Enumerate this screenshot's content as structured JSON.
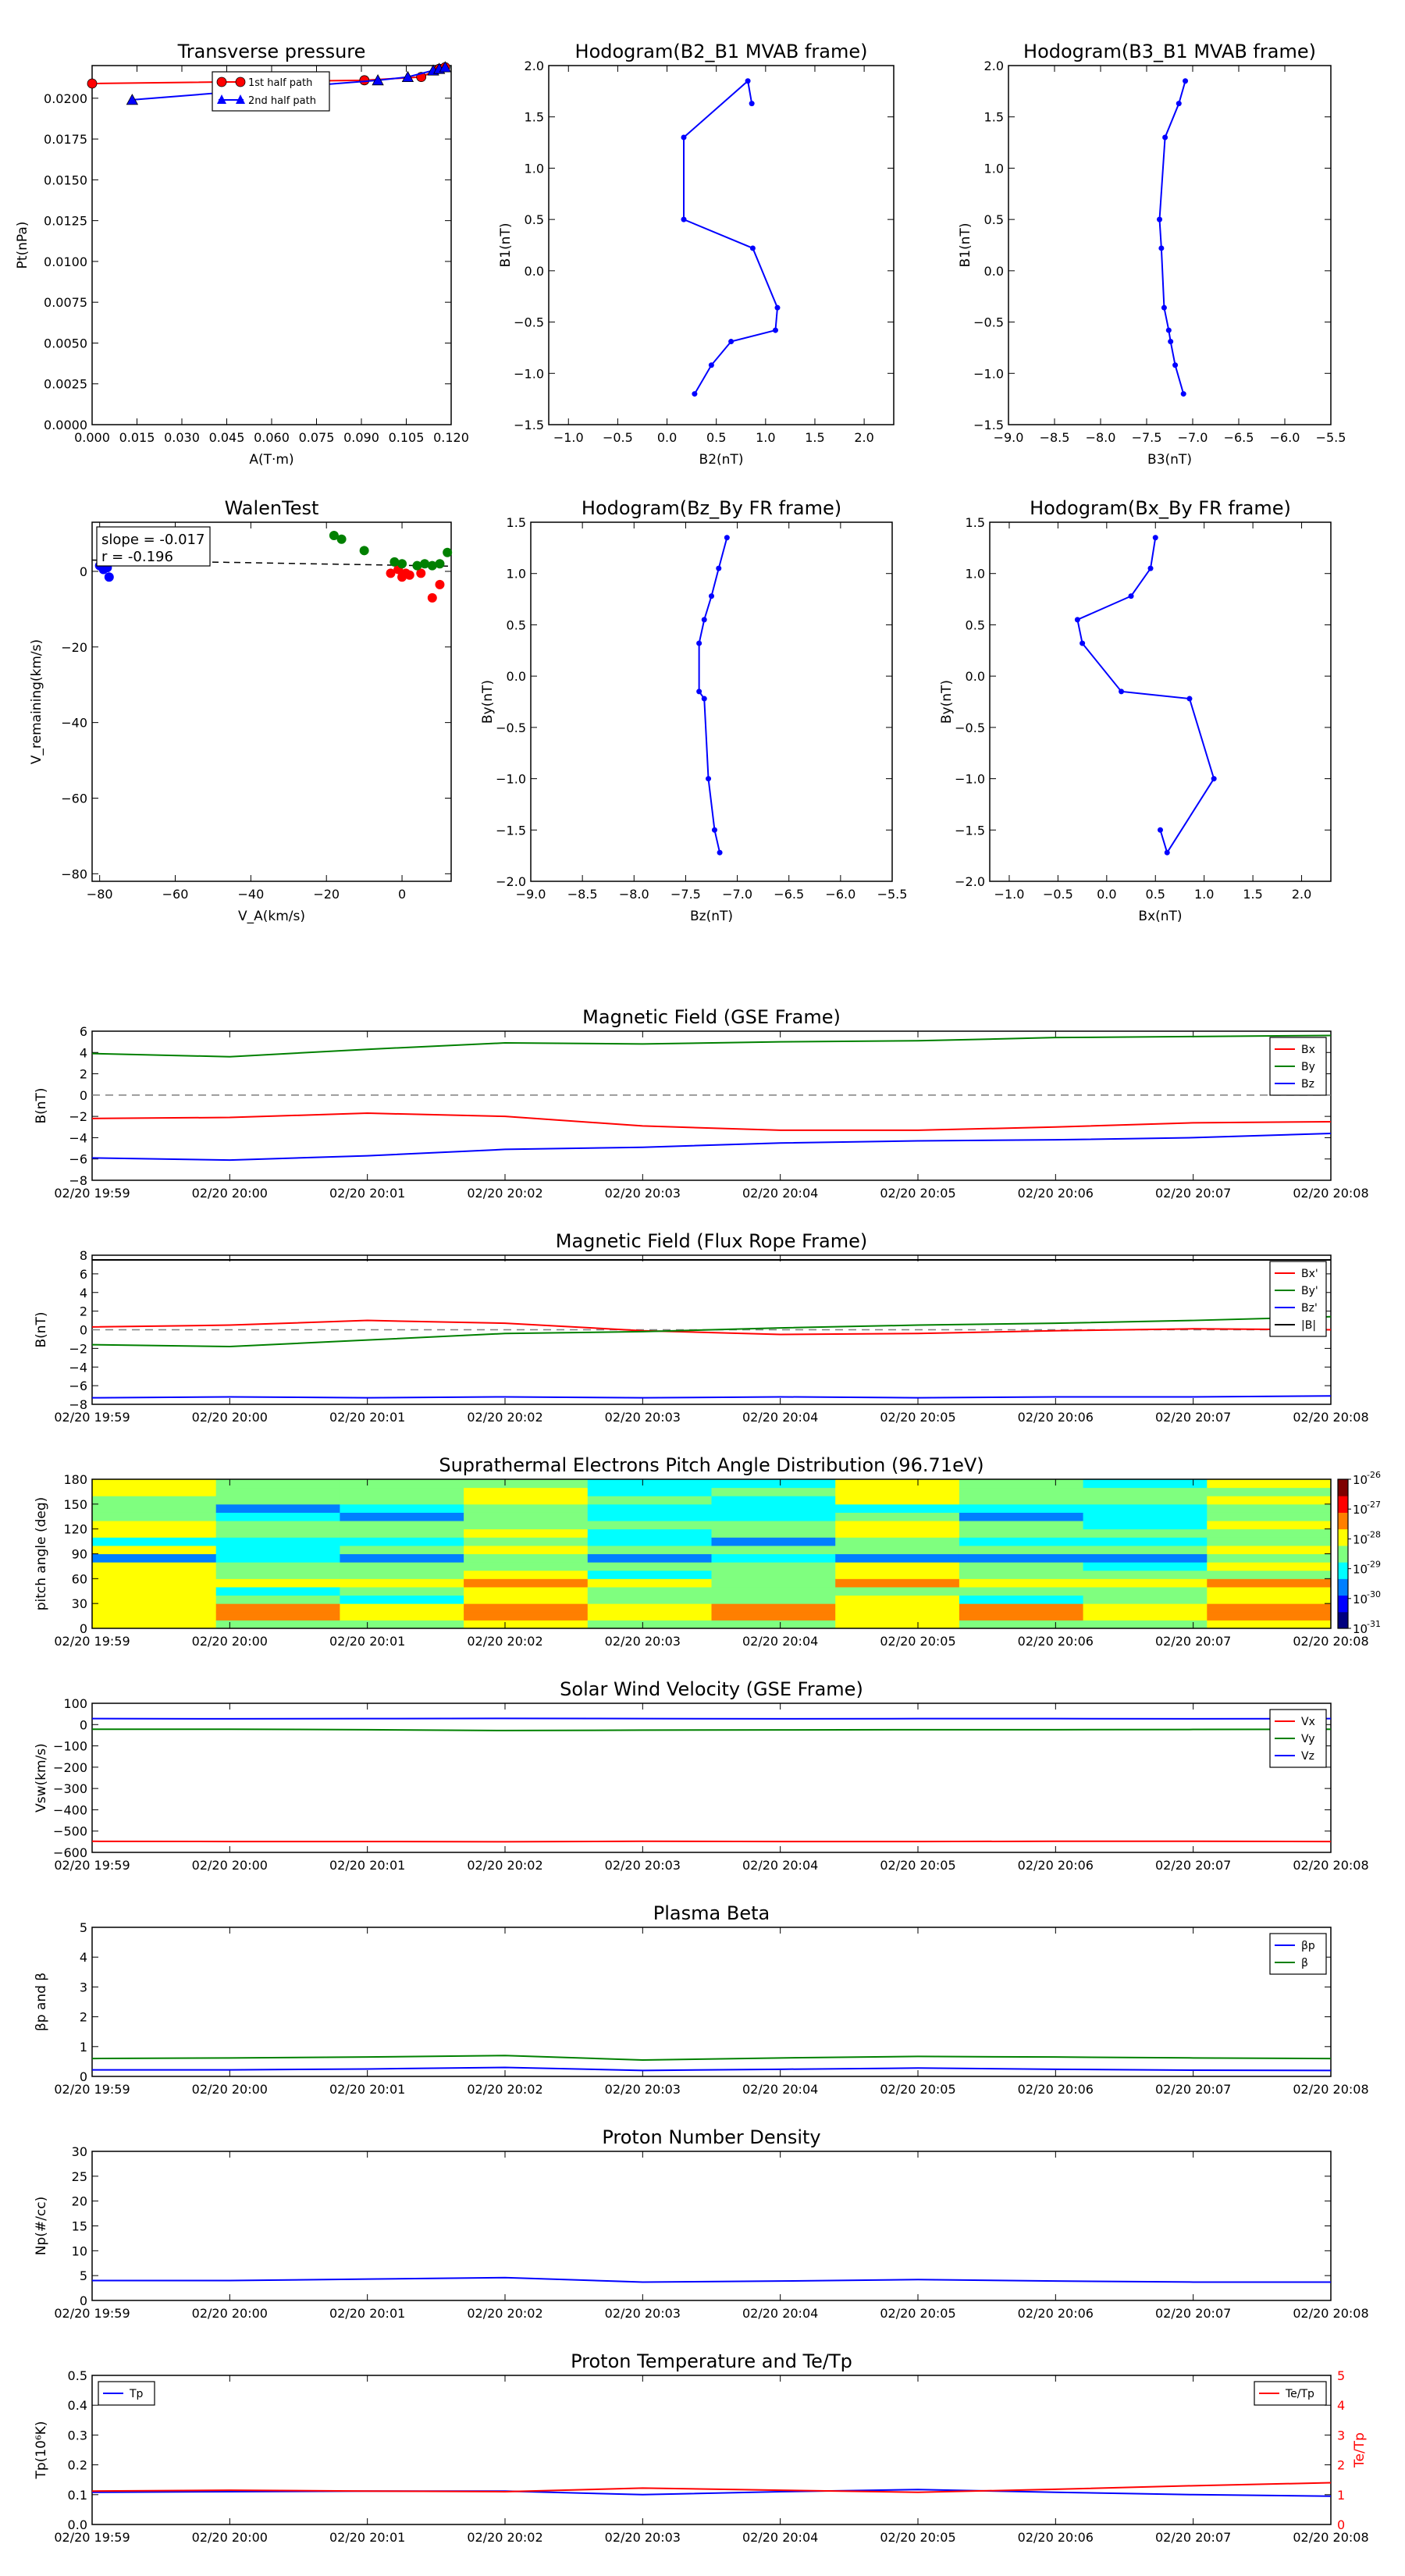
{
  "chart_data": [
    {
      "id": "pt",
      "type": "scatter",
      "title": "Transverse pressure",
      "xlabel": "A(T·m)",
      "ylabel": "Pt(nPa)",
      "xlim": [
        0.0,
        0.12
      ],
      "ylim": [
        0.0,
        0.022
      ],
      "xticks": [
        "0.000",
        "0.015",
        "0.030",
        "0.045",
        "0.060",
        "0.075",
        "0.090",
        "0.105",
        "0.120"
      ],
      "yticks": [
        "0.0000",
        "0.0025",
        "0.0050",
        "0.0075",
        "0.0100",
        "0.0125",
        "0.0150",
        "0.0175",
        "0.0200"
      ],
      "legend": [
        "1st half path",
        "2nd half path"
      ],
      "series": [
        {
          "name": "1st half path",
          "color": "#ff0000",
          "marker": "circle",
          "x": [
            0.0,
            0.091,
            0.11,
            0.116,
            0.118
          ],
          "y": [
            0.0209,
            0.0211,
            0.0213,
            0.0218,
            0.0219
          ]
        },
        {
          "name": "2nd half path",
          "color": "#0000ff",
          "marker": "triangle",
          "x": [
            0.0134,
            0.0955,
            0.1055,
            0.114,
            0.116,
            0.118
          ],
          "y": [
            0.0199,
            0.0211,
            0.0213,
            0.0217,
            0.0218,
            0.0219
          ]
        }
      ]
    },
    {
      "id": "h1",
      "type": "line",
      "title": "Hodogram(B2_B1 MVAB frame)",
      "xlabel": "B2(nT)",
      "ylabel": "B1(nT)",
      "xlim": [
        -1.2,
        2.3
      ],
      "ylim": [
        -1.5,
        2.0
      ],
      "xticks": [
        "−1.0",
        "−0.5",
        "0.0",
        "0.5",
        "1.0",
        "1.5",
        "2.0"
      ],
      "yticks": [
        "−1.5",
        "−1.0",
        "−0.5",
        "0.0",
        "0.5",
        "1.0",
        "1.5",
        "2.0"
      ],
      "series": [
        {
          "color": "#0000ff",
          "x": [
            0.86,
            0.82,
            0.17,
            0.17,
            0.87,
            1.12,
            1.1,
            0.65,
            0.45,
            0.28
          ],
          "y": [
            1.63,
            1.85,
            1.3,
            0.5,
            0.22,
            -0.36,
            -0.58,
            -0.69,
            -0.92,
            -1.2
          ]
        }
      ]
    },
    {
      "id": "h2",
      "type": "line",
      "title": "Hodogram(B3_B1 MVAB frame)",
      "xlabel": "B3(nT)",
      "ylabel": "B1(nT)",
      "xlim": [
        -9.0,
        -5.5
      ],
      "ylim": [
        -1.5,
        2.0
      ],
      "xticks": [
        "−9.0",
        "−8.5",
        "−8.0",
        "−7.5",
        "−7.0",
        "−6.5",
        "−6.0",
        "−5.5"
      ],
      "yticks": [
        "−1.5",
        "−1.0",
        "−0.5",
        "0.0",
        "0.5",
        "1.0",
        "1.5",
        "2.0"
      ],
      "series": [
        {
          "color": "#0000ff",
          "x": [
            -7.08,
            -7.15,
            -7.3,
            -7.36,
            -7.34,
            -7.31,
            -7.26,
            -7.24,
            -7.19,
            -7.1
          ],
          "y": [
            1.85,
            1.63,
            1.3,
            0.5,
            0.22,
            -0.36,
            -0.58,
            -0.69,
            -0.92,
            -1.2
          ]
        }
      ]
    },
    {
      "id": "walen",
      "type": "scatter",
      "title": "WalenTest",
      "xlabel": "V_A(km/s)",
      "ylabel": "V_remaining(km/s)",
      "xlim": [
        -82,
        13
      ],
      "ylim": [
        -82,
        13
      ],
      "xticks": [
        "−80",
        "−60",
        "−40",
        "−20",
        "0"
      ],
      "yticks": [
        "−80",
        "−60",
        "−40",
        "−20",
        "0"
      ],
      "annotation": [
        "slope = -0.017",
        "r = -0.196"
      ],
      "fit": {
        "slope": -0.017,
        "intercept": 1.6
      },
      "series": [
        {
          "color": "#0000ff",
          "x": [
            -80,
            -79.5,
            -79,
            -78,
            -77.5,
            -79
          ],
          "y": [
            1.5,
            2.5,
            0.5,
            1.0,
            -1.5,
            2.0
          ]
        },
        {
          "color": "#ff0000",
          "x": [
            -3,
            -1,
            0,
            1,
            2,
            5,
            8,
            10
          ],
          "y": [
            -0.5,
            0.5,
            -1.5,
            -0.5,
            -1.0,
            -0.5,
            -7.0,
            -3.5
          ]
        },
        {
          "color": "#008000",
          "x": [
            -18,
            -16,
            -10,
            -2,
            0,
            4,
            6,
            8,
            10,
            12
          ],
          "y": [
            9.5,
            8.5,
            5.5,
            2.5,
            2.0,
            1.5,
            2.0,
            1.5,
            2.0,
            5.0
          ]
        }
      ]
    },
    {
      "id": "h3",
      "type": "line",
      "title": "Hodogram(Bz_By FR frame)",
      "xlabel": "Bz(nT)",
      "ylabel": "By(nT)",
      "xlim": [
        -9.0,
        -5.5
      ],
      "ylim": [
        -2.0,
        1.5
      ],
      "xticks": [
        "−9.0",
        "−8.5",
        "−8.0",
        "−7.5",
        "−7.0",
        "−6.5",
        "−6.0",
        "−5.5"
      ],
      "yticks": [
        "−2.0",
        "−1.5",
        "−1.0",
        "−0.5",
        "0.0",
        "0.5",
        "1.0",
        "1.5"
      ],
      "series": [
        {
          "color": "#0000ff",
          "x": [
            -7.1,
            -7.18,
            -7.25,
            -7.32,
            -7.37,
            -7.37,
            -7.32,
            -7.28,
            -7.22,
            -7.17
          ],
          "y": [
            1.35,
            1.05,
            0.78,
            0.55,
            0.32,
            -0.15,
            -0.22,
            -1.0,
            -1.5,
            -1.72
          ]
        }
      ]
    },
    {
      "id": "h4",
      "type": "line",
      "title": "Hodogram(Bx_By FR frame)",
      "xlabel": "Bx(nT)",
      "ylabel": "By(nT)",
      "xlim": [
        -1.2,
        2.3
      ],
      "ylim": [
        -2.0,
        1.5
      ],
      "xticks": [
        "−1.0",
        "−0.5",
        "0.0",
        "0.5",
        "1.0",
        "1.5",
        "2.0"
      ],
      "yticks": [
        "−2.0",
        "−1.5",
        "−1.0",
        "−0.5",
        "0.0",
        "0.5",
        "1.0",
        "1.5"
      ],
      "series": [
        {
          "color": "#0000ff",
          "x": [
            0.5,
            0.45,
            0.25,
            -0.3,
            -0.25,
            0.15,
            0.85,
            1.1,
            0.62,
            0.55
          ],
          "y": [
            1.35,
            1.05,
            0.78,
            0.55,
            0.32,
            -0.15,
            -0.22,
            -1.0,
            -1.72,
            -1.5
          ]
        }
      ]
    },
    {
      "id": "ts1",
      "type": "line",
      "title": "Magnetic Field (GSE Frame)",
      "ylabel": "B(nT)",
      "ylim": [
        -8,
        6
      ],
      "yticks": [
        "−8",
        "−6",
        "−4",
        "−2",
        "0",
        "2",
        "4",
        "6"
      ],
      "xticks": [
        "02/20 19:59",
        "02/20 20:00",
        "02/20 20:01",
        "02/20 20:02",
        "02/20 20:03",
        "02/20 20:04",
        "02/20 20:05",
        "02/20 20:06",
        "02/20 20:07",
        "02/20 20:08"
      ],
      "zero_line": true,
      "legend": [
        "Bx",
        "By",
        "Bz"
      ],
      "series": [
        {
          "name": "Bx",
          "color": "#ff0000",
          "values": [
            -2.2,
            -2.1,
            -1.7,
            -2.0,
            -2.9,
            -3.3,
            -3.3,
            -3.0,
            -2.6,
            -2.5
          ]
        },
        {
          "name": "By",
          "color": "#008000",
          "values": [
            3.9,
            3.6,
            4.3,
            4.9,
            4.8,
            5.0,
            5.1,
            5.4,
            5.5,
            5.6
          ]
        },
        {
          "name": "Bz",
          "color": "#0000ff",
          "values": [
            -5.9,
            -6.1,
            -5.7,
            -5.1,
            -4.9,
            -4.5,
            -4.3,
            -4.2,
            -4.0,
            -3.6
          ]
        }
      ]
    },
    {
      "id": "ts2",
      "type": "line",
      "title": "Magnetic Field (Flux Rope Frame)",
      "ylabel": "B(nT)",
      "ylim": [
        -8,
        8
      ],
      "yticks": [
        "−8",
        "−6",
        "−4",
        "−2",
        "0",
        "2",
        "4",
        "6",
        "8"
      ],
      "xticks": [
        "02/20 19:59",
        "02/20 20:00",
        "02/20 20:01",
        "02/20 20:02",
        "02/20 20:03",
        "02/20 20:04",
        "02/20 20:05",
        "02/20 20:06",
        "02/20 20:07",
        "02/20 20:08"
      ],
      "zero_line": true,
      "legend": [
        "Bx'",
        "By'",
        "Bz'",
        "|B|"
      ],
      "series": [
        {
          "name": "Bx'",
          "color": "#ff0000",
          "values": [
            0.3,
            0.5,
            1.0,
            0.7,
            -0.1,
            -0.5,
            -0.4,
            -0.1,
            0.1,
            0.0
          ]
        },
        {
          "name": "By'",
          "color": "#008000",
          "values": [
            -1.6,
            -1.8,
            -1.1,
            -0.4,
            -0.2,
            0.2,
            0.5,
            0.7,
            1.0,
            1.4
          ]
        },
        {
          "name": "Bz'",
          "color": "#0000ff",
          "values": [
            -7.3,
            -7.2,
            -7.3,
            -7.2,
            -7.3,
            -7.2,
            -7.3,
            -7.2,
            -7.2,
            -7.1
          ]
        },
        {
          "name": "|B|",
          "color": "#000000",
          "values": [
            7.5,
            7.5,
            7.5,
            7.5,
            7.5,
            7.5,
            7.5,
            7.5,
            7.5,
            7.5
          ]
        }
      ]
    },
    {
      "id": "pad",
      "type": "heatmap",
      "title": "Suprathermal Electrons Pitch Angle Distribution (96.71eV)",
      "ylabel": "pitch angle (deg)",
      "ylim": [
        0,
        180
      ],
      "yticks": [
        "0",
        "30",
        "60",
        "90",
        "120",
        "150",
        "180"
      ],
      "xticks": [
        "02/20 19:59",
        "02/20 20:00",
        "02/20 20:01",
        "02/20 20:02",
        "02/20 20:03",
        "02/20 20:04",
        "02/20 20:05",
        "02/20 20:06",
        "02/20 20:07",
        "02/20 20:08"
      ],
      "colorbar_exponents": [
        "-26",
        "-27",
        "-28",
        "-29",
        "-30",
        "-31"
      ],
      "colorbar_base": "10",
      "colors": [
        "#00007f",
        "#0000ff",
        "#007fff",
        "#00ffff",
        "#7fff7f",
        "#ffff00",
        "#ff7f00",
        "#ff0000",
        "#7f0000"
      ]
    },
    {
      "id": "ts3",
      "type": "line",
      "title": "Solar Wind Velocity (GSE Frame)",
      "ylabel": "Vsw(km/s)",
      "ylim": [
        -600,
        100
      ],
      "yticks": [
        "−600",
        "−500",
        "−400",
        "−300",
        "−200",
        "−100",
        "0",
        "100"
      ],
      "xticks": [
        "02/20 19:59",
        "02/20 20:00",
        "02/20 20:01",
        "02/20 20:02",
        "02/20 20:03",
        "02/20 20:04",
        "02/20 20:05",
        "02/20 20:06",
        "02/20 20:07",
        "02/20 20:08"
      ],
      "legend": [
        "Vx",
        "Vy",
        "Vz"
      ],
      "series": [
        {
          "name": "Vx",
          "color": "#ff0000",
          "values": [
            -548,
            -549,
            -549,
            -550,
            -548,
            -549,
            -549,
            -548,
            -548,
            -549
          ]
        },
        {
          "name": "Vy",
          "color": "#008000",
          "values": [
            -22,
            -22,
            -24,
            -28,
            -26,
            -25,
            -24,
            -24,
            -23,
            -22
          ]
        },
        {
          "name": "Vz",
          "color": "#0000ff",
          "values": [
            28,
            27,
            28,
            29,
            28,
            27,
            28,
            28,
            27,
            28
          ]
        }
      ]
    },
    {
      "id": "ts4",
      "type": "line",
      "title": "Plasma Beta",
      "ylabel": "βp and β",
      "ylim": [
        0,
        5
      ],
      "yticks": [
        "0",
        "1",
        "2",
        "3",
        "4",
        "5"
      ],
      "xticks": [
        "02/20 19:59",
        "02/20 20:00",
        "02/20 20:01",
        "02/20 20:02",
        "02/20 20:03",
        "02/20 20:04",
        "02/20 20:05",
        "02/20 20:06",
        "02/20 20:07",
        "02/20 20:08"
      ],
      "legend": [
        "βp",
        "β"
      ],
      "series": [
        {
          "name": "βp",
          "color": "#0000ff",
          "values": [
            0.22,
            0.22,
            0.25,
            0.3,
            0.2,
            0.24,
            0.28,
            0.24,
            0.21,
            0.2
          ]
        },
        {
          "name": "β",
          "color": "#008000",
          "values": [
            0.6,
            0.62,
            0.65,
            0.7,
            0.55,
            0.62,
            0.67,
            0.65,
            0.62,
            0.6
          ]
        }
      ]
    },
    {
      "id": "ts5",
      "type": "line",
      "title": "Proton Number Density",
      "ylabel": "Np(#/cc)",
      "ylim": [
        0,
        30
      ],
      "yticks": [
        "0",
        "5",
        "10",
        "15",
        "20",
        "25",
        "30"
      ],
      "xticks": [
        "02/20 19:59",
        "02/20 20:00",
        "02/20 20:01",
        "02/20 20:02",
        "02/20 20:03",
        "02/20 20:04",
        "02/20 20:05",
        "02/20 20:06",
        "02/20 20:07",
        "02/20 20:08"
      ],
      "series": [
        {
          "name": "Np",
          "color": "#0000ff",
          "values": [
            4.0,
            4.0,
            4.3,
            4.6,
            3.7,
            3.9,
            4.2,
            3.9,
            3.7,
            3.7
          ]
        }
      ]
    },
    {
      "id": "ts6",
      "type": "line",
      "title": "Proton Temperature and Te/Tp",
      "ylabel": "Tp(10⁶K)",
      "ylabel_right": "Te/Tp",
      "ylim": [
        0,
        0.5
      ],
      "ylim_right": [
        0,
        5
      ],
      "yticks": [
        "0.0",
        "0.1",
        "0.2",
        "0.3",
        "0.4",
        "0.5"
      ],
      "yticks_right": [
        "0",
        "1",
        "2",
        "3",
        "4",
        "5"
      ],
      "xticks": [
        "02/20 19:59",
        "02/20 20:00",
        "02/20 20:01",
        "02/20 20:02",
        "02/20 20:03",
        "02/20 20:04",
        "02/20 20:05",
        "02/20 20:06",
        "02/20 20:07",
        "02/20 20:08"
      ],
      "legend": [
        "Tp"
      ],
      "legend_right": [
        "Te/Tp"
      ],
      "series": [
        {
          "name": "Tp",
          "color": "#0000ff",
          "axis": "left",
          "values": [
            0.108,
            0.11,
            0.112,
            0.112,
            0.1,
            0.11,
            0.117,
            0.108,
            0.1,
            0.095
          ]
        },
        {
          "name": "Te/Tp",
          "color": "#ff0000",
          "axis": "right",
          "values": [
            1.12,
            1.15,
            1.12,
            1.1,
            1.22,
            1.15,
            1.08,
            1.18,
            1.3,
            1.4
          ]
        }
      ]
    }
  ]
}
